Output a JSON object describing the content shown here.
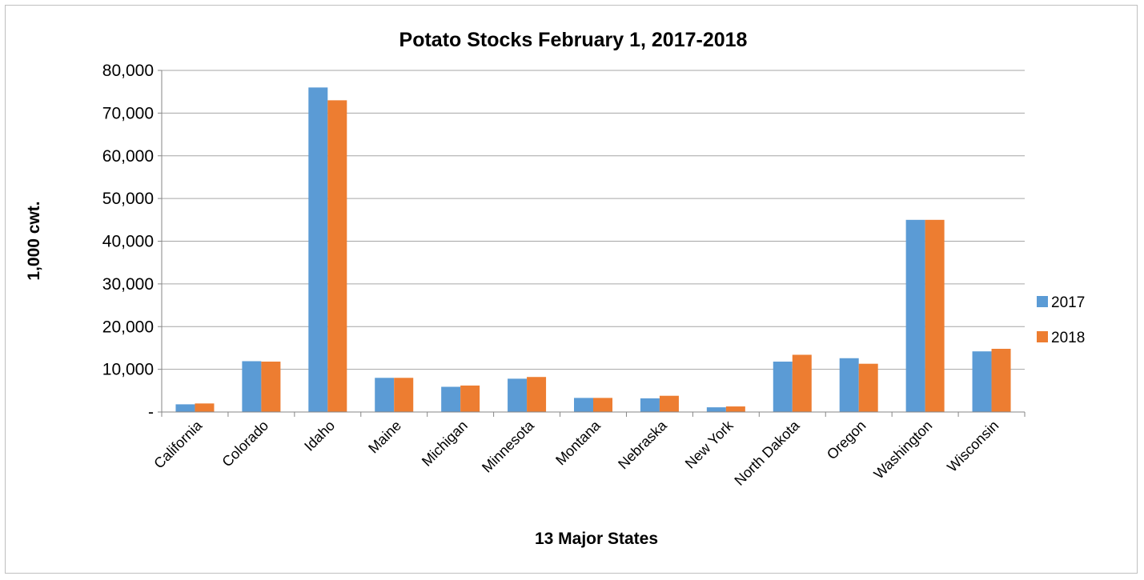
{
  "chart_data": {
    "type": "bar",
    "title": "Potato Stocks February 1, 2017-2018",
    "xlabel": "13 Major States",
    "ylabel": "1,000 cwt.",
    "ylim": [
      0,
      80000
    ],
    "yticks": [
      {
        "value": 0,
        "label": "-"
      },
      {
        "value": 10000,
        "label": "10,000"
      },
      {
        "value": 20000,
        "label": "20,000"
      },
      {
        "value": 30000,
        "label": "30,000"
      },
      {
        "value": 40000,
        "label": "40,000"
      },
      {
        "value": 50000,
        "label": "50,000"
      },
      {
        "value": 60000,
        "label": "60,000"
      },
      {
        "value": 70000,
        "label": "70,000"
      },
      {
        "value": 80000,
        "label": "80,000"
      }
    ],
    "grid": true,
    "legend_position": "right",
    "categories": [
      "California",
      "Colorado",
      "Idaho",
      "Maine",
      "Michigan",
      "Minnesota",
      "Montana",
      "Nebraska",
      "New York",
      "North Dakota",
      "Oregon",
      "Washington",
      "Wisconsin"
    ],
    "series": [
      {
        "name": "2017",
        "color": "#5b9bd5",
        "values": [
          1800,
          11900,
          76000,
          8000,
          5900,
          7800,
          3300,
          3200,
          1100,
          11800,
          12600,
          45000,
          14200
        ]
      },
      {
        "name": "2018",
        "color": "#ed7d31",
        "values": [
          2000,
          11800,
          73000,
          8000,
          6200,
          8200,
          3300,
          3800,
          1300,
          13400,
          11300,
          45000,
          14800
        ]
      }
    ]
  }
}
